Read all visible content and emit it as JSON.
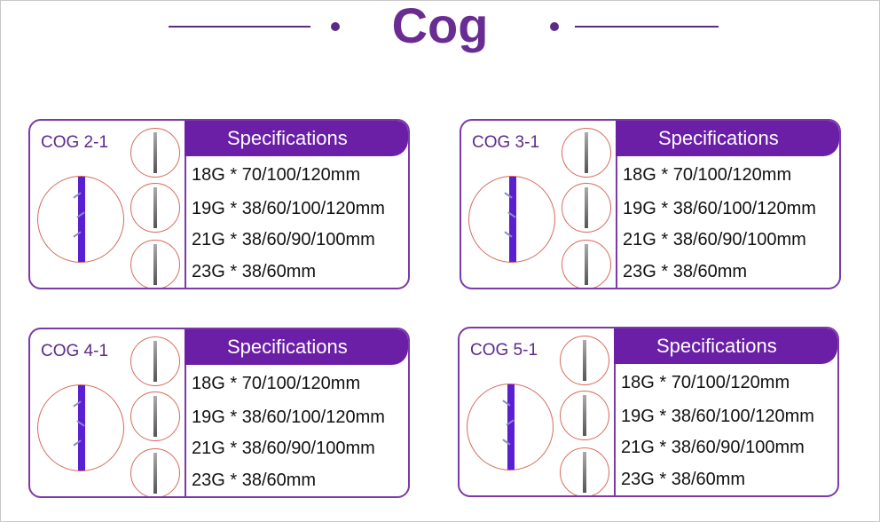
{
  "page": {
    "title": "Cog"
  },
  "cards": [
    {
      "name": "COG 2-1",
      "spec_header": "Specifications",
      "specs": [
        "18G * 70/100/120mm",
        "19G * 38/60/100/120mm",
        "21G * 38/60/90/100mm",
        "23G * 38/60mm"
      ]
    },
    {
      "name": "COG 3-1",
      "spec_header": "Specifications",
      "specs": [
        "18G * 70/100/120mm",
        "19G * 38/60/100/120mm",
        "21G * 38/60/90/100mm",
        "23G * 38/60mm"
      ]
    },
    {
      "name": "COG 4-1",
      "spec_header": "Specifications",
      "specs": [
        "18G * 70/100/120mm",
        "19G * 38/60/100/120mm",
        "21G * 38/60/90/100mm",
        "23G * 38/60mm"
      ]
    },
    {
      "name": "COG 5-1",
      "spec_header": "Specifications",
      "specs": [
        "18G * 70/100/120mm",
        "19G * 38/60/100/120mm",
        "21G * 38/60/90/100mm",
        "23G * 38/60mm"
      ]
    }
  ],
  "colors": {
    "brand_purple": "#6a2c93",
    "header_purple": "#6a1fa6",
    "thread_blue": "#5a1fd0",
    "circle_red": "#d66a5a"
  },
  "icons": [
    "thread-icon",
    "needle-icon"
  ]
}
